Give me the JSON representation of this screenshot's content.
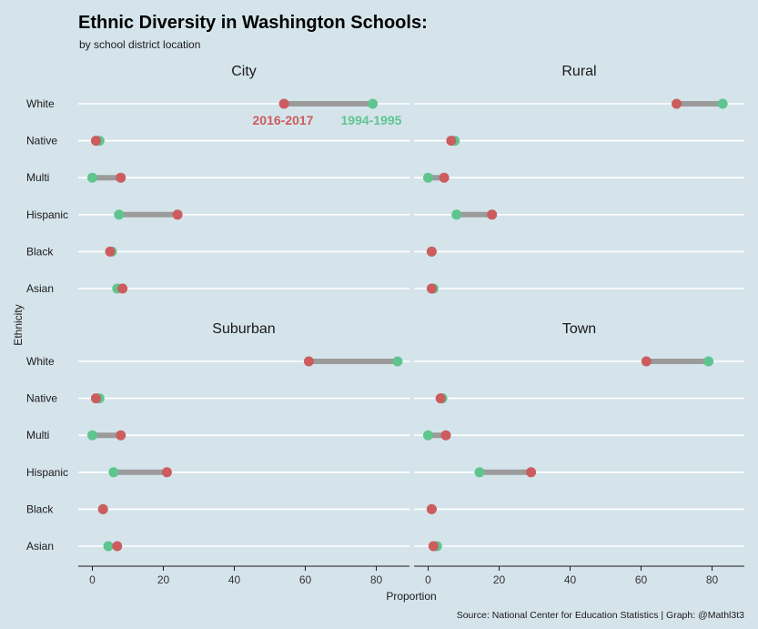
{
  "colors": {
    "background": "#d5e4eb",
    "grid": "#ffffff",
    "segment": "#9b9b9b",
    "year_2016": "#cc5c5e",
    "year_1994": "#5fc58f"
  },
  "chart_data": {
    "type": "dumbbell",
    "title": "Ethnic Diversity in Washington Schools:",
    "subtitle": "by school district location",
    "xlabel": "Proportion",
    "ylabel": "Ethnicity",
    "caption": "Source: National Center for Education Statistics | Graph: @Mathl3t3",
    "xlim": [
      -3.5,
      90
    ],
    "x_ticks": [
      "0",
      "20",
      "40",
      "60",
      "80"
    ],
    "grid": true,
    "categories": [
      "White",
      "Native",
      "Multi",
      "Hispanic",
      "Black",
      "Asian"
    ],
    "series_labels": {
      "year_2016": "2016-2017",
      "year_1994": "1994-1995"
    },
    "panels": [
      {
        "name": "City",
        "values_2016": [
          54,
          1,
          8,
          24,
          5,
          8.5
        ],
        "values_1994": [
          79,
          2,
          0,
          7.5,
          5.5,
          7
        ]
      },
      {
        "name": "Rural",
        "values_2016": [
          70,
          6.5,
          4.5,
          18,
          1,
          1
        ],
        "values_1994": [
          83,
          7.5,
          0,
          8,
          1,
          1.5
        ]
      },
      {
        "name": "Suburban",
        "values_2016": [
          61,
          1,
          8,
          21,
          3,
          7
        ],
        "values_1994": [
          86,
          2,
          0,
          6,
          3,
          4.5
        ]
      },
      {
        "name": "Town",
        "values_2016": [
          61.5,
          3.5,
          5,
          29,
          1,
          1.5
        ],
        "values_1994": [
          79,
          4,
          0,
          14.5,
          1,
          2.5
        ]
      }
    ]
  }
}
